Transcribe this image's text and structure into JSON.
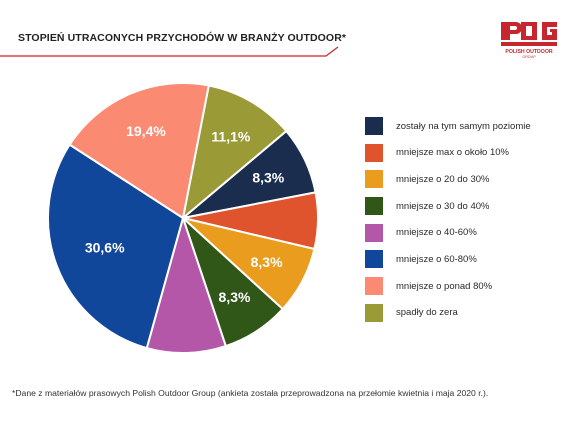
{
  "header": {
    "title": "STOPIEŃ UTRACONYCH PRZYCHODÓW W BRANŻY OUTDOOR*",
    "logo_name": "POLISH OUTDOOR",
    "logo_sub": "GROUP"
  },
  "chart_data": {
    "type": "pie",
    "title": "STOPIEŃ UTRACONYCH PRZYCHODÓW W BRANŻY OUTDOOR*",
    "start_angle_deg": 11,
    "slices": [
      {
        "name": "spadły do zera",
        "value": 11.1,
        "label": "11,1%",
        "color": "#9a9a37"
      },
      {
        "name": "zostały na tym samym poziomie",
        "value": 8.3,
        "label": "8,3%",
        "color": "#1b2d4f"
      },
      {
        "name": "mniejsze max o około 10%",
        "value": 6.9,
        "label": "",
        "color": "#e0542d"
      },
      {
        "name": "mniejsze o 20 do 30%",
        "value": 8.3,
        "label": "8,3%",
        "color": "#e99c1d"
      },
      {
        "name": "mniejsze o 30 do 40%",
        "value": 8.3,
        "label": "8,3%",
        "color": "#305717"
      },
      {
        "name": "mniejsze o 40-60%",
        "value": 9.7,
        "label": "",
        "color": "#b457a8"
      },
      {
        "name": "mniejsze o 60-80%",
        "value": 30.6,
        "label": "30,6%",
        "color": "#11479a"
      },
      {
        "name": "mniejsze o ponad 80%",
        "value": 19.4,
        "label": "19,4%",
        "color": "#fb8a73"
      }
    ],
    "legend_placement": "right",
    "legend": [
      {
        "label": "zostały na tym samym poziomie",
        "color": "#1b2d4f"
      },
      {
        "label": "mniejsze max o około 10%",
        "color": "#e0542d"
      },
      {
        "label": "mniejsze o 20 do 30%",
        "color": "#e99c1d"
      },
      {
        "label": "mniejsze o 30 do 40%",
        "color": "#305717"
      },
      {
        "label": "mniejsze o 40-60%",
        "color": "#b457a8"
      },
      {
        "label": "mniejsze o 60-80%",
        "color": "#11479a"
      },
      {
        "label": "mniejsze o ponad 80%",
        "color": "#fb8a73"
      },
      {
        "label": "spadły do zera",
        "color": "#9a9a37"
      }
    ]
  },
  "footnote": "*Dane z materiałów prasowych Polish Outdoor Group (ankieta została przeprowadzona na przełomie kwietnia i maja 2020 r.).",
  "colors": {
    "accent": "#c8262e"
  }
}
